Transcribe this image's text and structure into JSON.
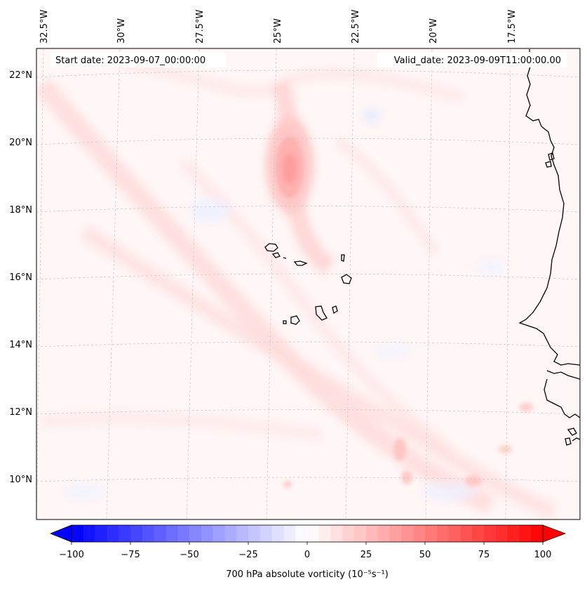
{
  "map": {
    "start_label": "Start date: 2023-09-07_00:00:00",
    "valid_label": "Valid_date: 2023-09-09T11:00:00.00",
    "lon_labels": [
      "32.5°W",
      "30°W",
      "27.5°W",
      "25°W",
      "22.5°W",
      "20°W",
      "17.5°W"
    ],
    "lat_labels": [
      "22°N",
      "20°N",
      "18°N",
      "16°N",
      "14°N",
      "12°N",
      "10°N"
    ],
    "field": "700 hPa absolute vorticity",
    "vorticity_max_approx": 35,
    "vortex_center": {
      "lat": 19.2,
      "lon": -24.4
    }
  },
  "colorbar": {
    "label": "700 hPa absolute vorticity (10⁻⁵s⁻¹)",
    "ticks": [
      "−100",
      "−75",
      "−50",
      "−25",
      "0",
      "25",
      "50",
      "75",
      "100"
    ],
    "min": -100,
    "max": 100,
    "levels": 40,
    "neg_color": "#0000ff",
    "pos_color": "#ff0000",
    "mid_color": "#ffffff"
  }
}
